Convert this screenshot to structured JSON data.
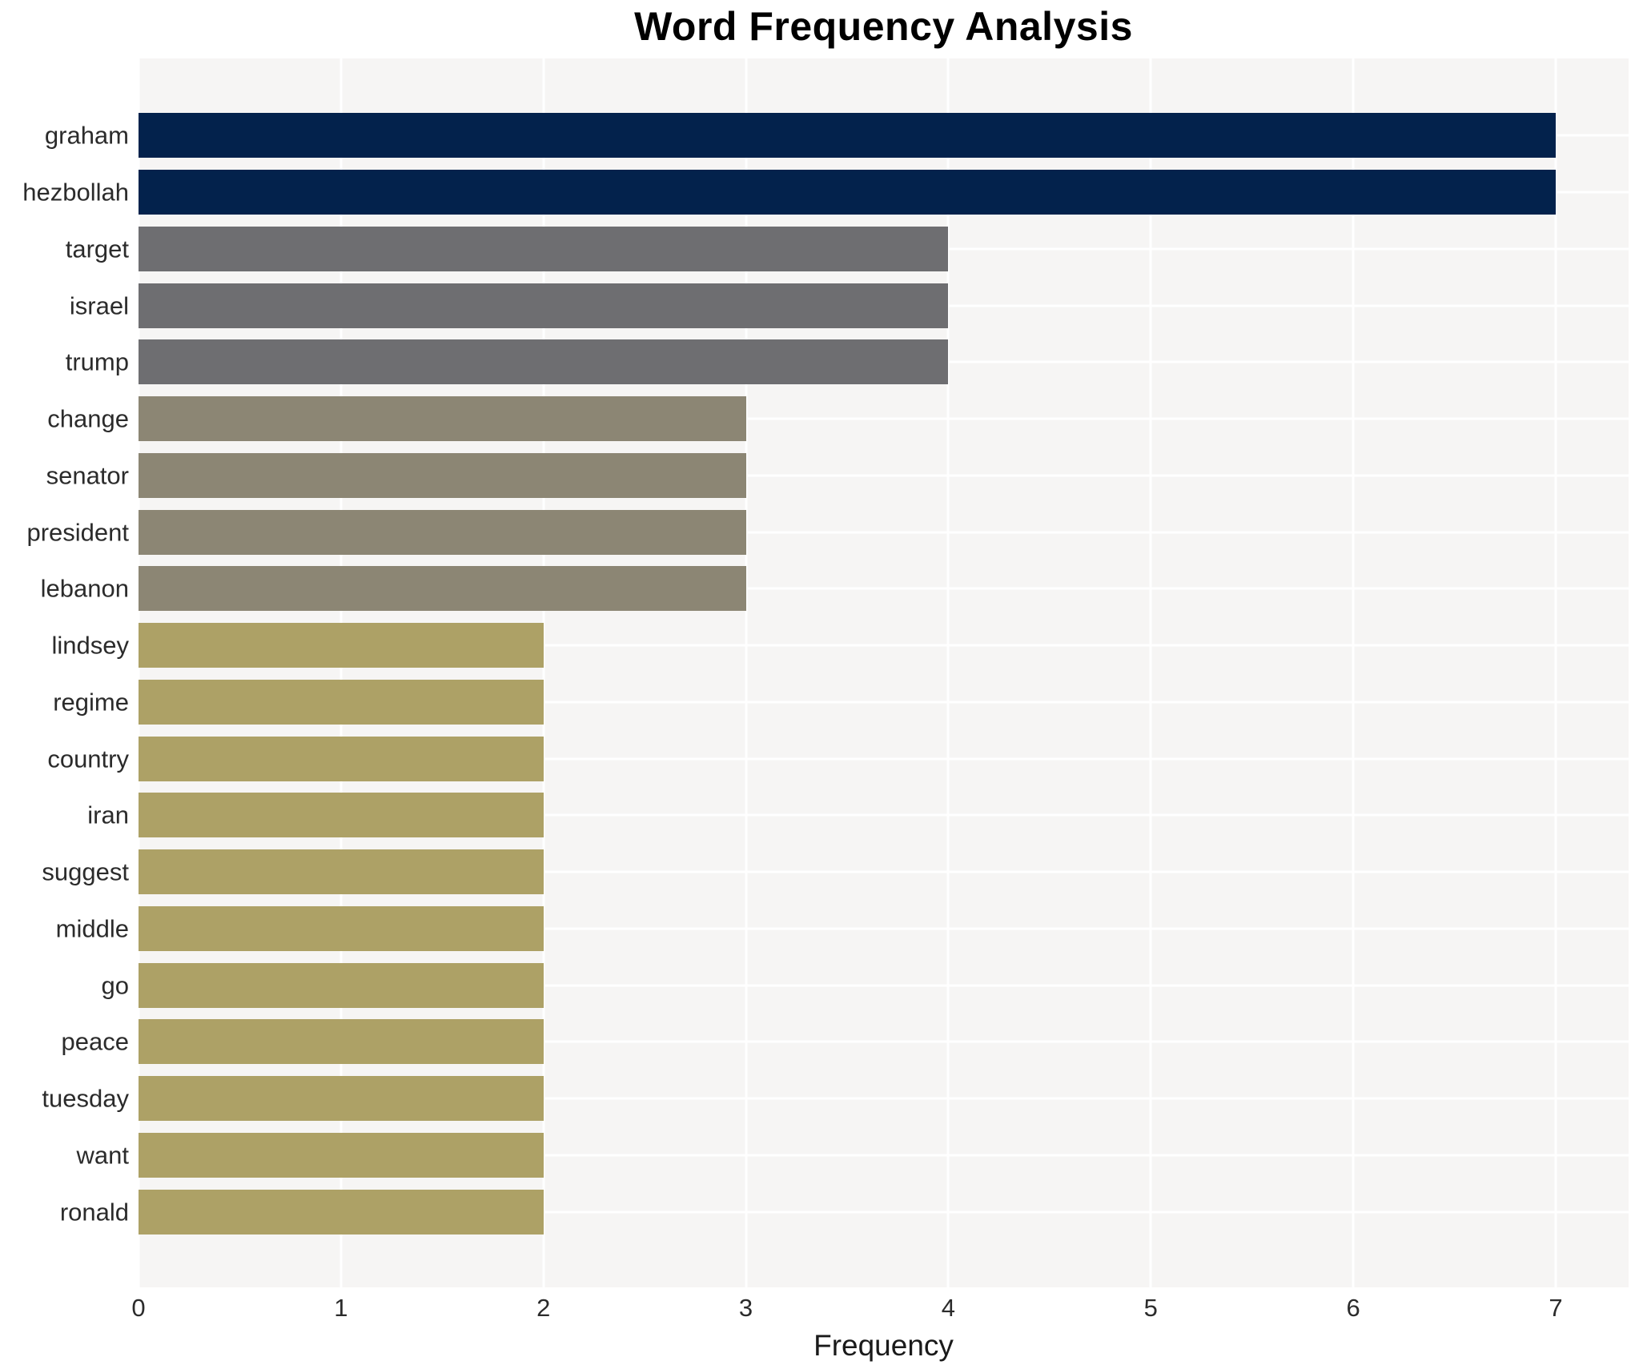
{
  "title": "Word Frequency Analysis",
  "chart_data": {
    "type": "bar",
    "orientation": "horizontal",
    "title": "Word Frequency Analysis",
    "xlabel": "Frequency",
    "ylabel": "",
    "categories": [
      "graham",
      "hezbollah",
      "target",
      "israel",
      "trump",
      "change",
      "senator",
      "president",
      "lebanon",
      "lindsey",
      "regime",
      "country",
      "iran",
      "suggest",
      "middle",
      "go",
      "peace",
      "tuesday",
      "want",
      "ronald"
    ],
    "values": [
      7,
      7,
      4,
      4,
      4,
      3,
      3,
      3,
      3,
      2,
      2,
      2,
      2,
      2,
      2,
      2,
      2,
      2,
      2,
      2
    ],
    "bar_colors": [
      "#03224c",
      "#03224c",
      "#6e6e71",
      "#6e6e71",
      "#6e6e71",
      "#8c8674",
      "#8c8674",
      "#8c8674",
      "#8c8674",
      "#ada166",
      "#ada166",
      "#ada166",
      "#ada166",
      "#ada166",
      "#ada166",
      "#ada166",
      "#ada166",
      "#ada166",
      "#ada166",
      "#ada166"
    ],
    "value_color_map": {
      "7": "#03224c",
      "4": "#6e6e71",
      "3": "#8c8674",
      "2": "#ada166"
    },
    "x_ticks": [
      0,
      1,
      2,
      3,
      4,
      5,
      6,
      7
    ],
    "x_tick_labels": [
      "0",
      "1",
      "2",
      "3",
      "4",
      "5",
      "6",
      "7"
    ],
    "xlim": [
      0,
      7.36
    ],
    "grid": true,
    "legend_position": "none",
    "plot_bg_color": "#f6f5f4",
    "grid_color": "#ffffff",
    "title_color": "#000000",
    "tick_label_color": "#2b2b2b",
    "axis_label_color": "#1a1a1a"
  }
}
